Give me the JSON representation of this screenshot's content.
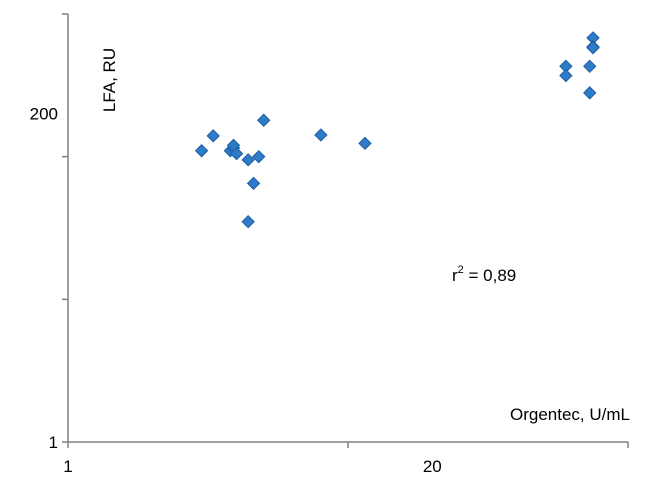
{
  "chart_data": {
    "type": "scatter",
    "xlabel": "Orgentec, U/mL",
    "ylabel": "LFA, RU",
    "x_scale": "log",
    "y_scale": "log",
    "xlim": [
      1,
      100
    ],
    "ylim": [
      1,
      1000
    ],
    "x_tick_labels": [
      {
        "value": 1,
        "label": "1"
      },
      {
        "value": 20,
        "label": "20"
      }
    ],
    "y_tick_labels": [
      {
        "value": 1,
        "label": "1"
      },
      {
        "value": 200,
        "label": "200"
      }
    ],
    "annotation": {
      "r2_prefix": "r",
      "r2_sup": "2",
      "r2_value": " = 0,89"
    },
    "grid": false,
    "legend": "none",
    "marker_color": "#2E7BC8",
    "marker_edge_color": "#1F5FA5",
    "series": [
      {
        "x": [
          3.0,
          3.3,
          3.8,
          3.9,
          3.9,
          4.0,
          4.4,
          4.4,
          4.6,
          4.8,
          5.0,
          8.0,
          11.5,
          60.0,
          60.0,
          73.0,
          73.0,
          75.0,
          75.0,
          75.0
        ],
        "y": [
          110,
          140,
          110,
          115,
          120,
          105,
          35,
          95,
          65,
          100,
          180,
          142,
          124,
          430,
          370,
          430,
          280,
          680,
          590,
          580
        ]
      }
    ]
  }
}
